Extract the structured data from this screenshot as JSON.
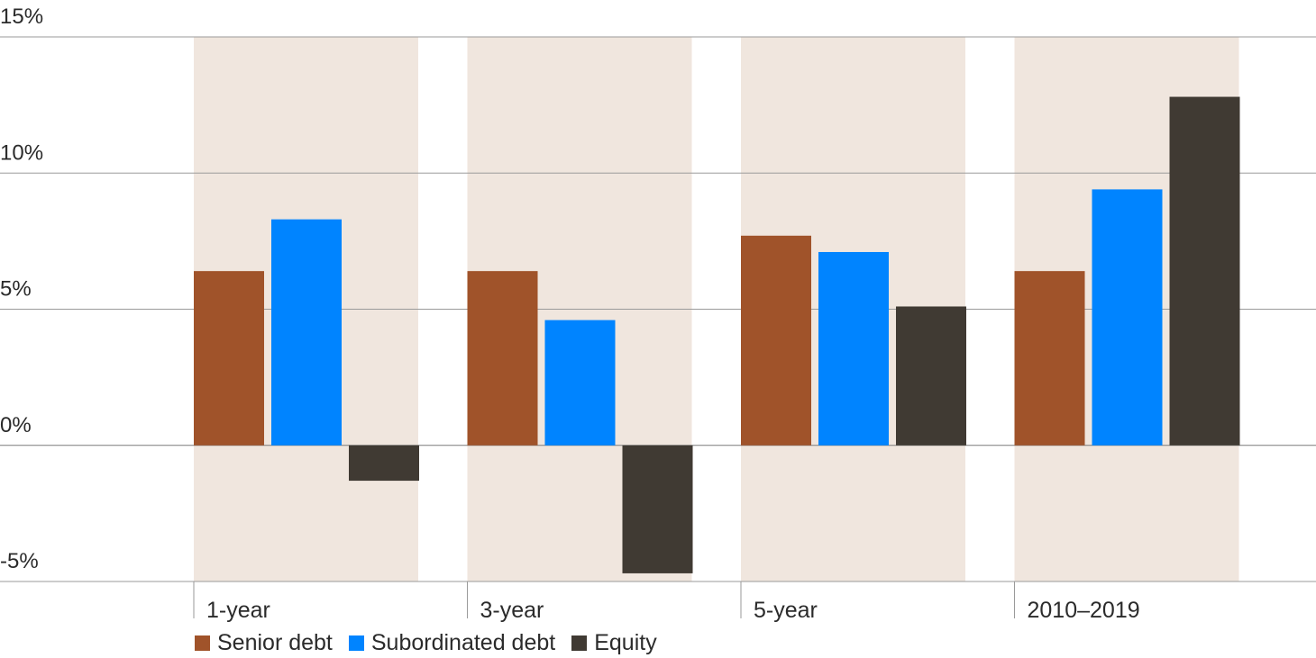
{
  "chart_data": {
    "type": "bar",
    "categories": [
      "1-year",
      "3-year",
      "5-year",
      "2010–2019"
    ],
    "series": [
      {
        "name": "Senior debt",
        "color": "#a0532a",
        "values": [
          6.4,
          6.4,
          7.7,
          6.4
        ]
      },
      {
        "name": "Subordinated debt",
        "color": "#0084ff",
        "values": [
          8.3,
          4.6,
          7.1,
          9.4
        ]
      },
      {
        "name": "Equity",
        "color": "#403a33",
        "values": [
          -1.3,
          -4.7,
          5.1,
          12.8
        ]
      }
    ],
    "y_ticks": [
      "15%",
      "10%",
      "5%",
      "0%",
      "-5%"
    ],
    "y_tick_values": [
      15,
      10,
      5,
      0,
      -5
    ],
    "ylim": [
      -5,
      15
    ],
    "grid": true,
    "legend_position": "bottom-left",
    "category_band_color": "#f0e6de"
  }
}
